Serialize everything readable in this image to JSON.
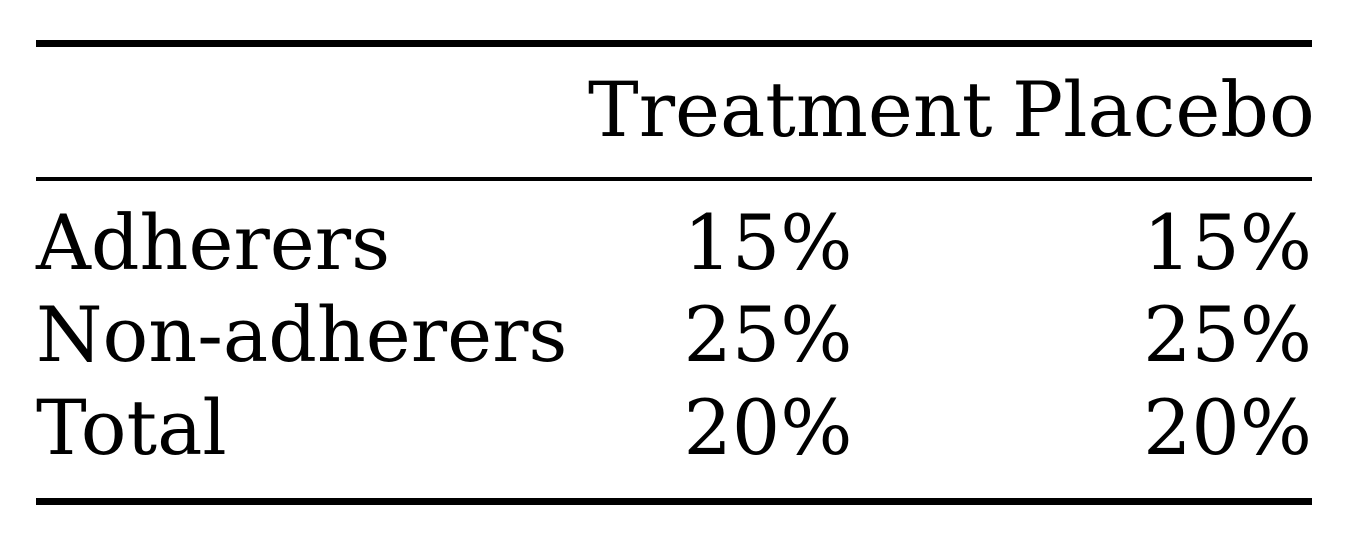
{
  "table": {
    "columns": [
      "",
      "Treatment",
      "Placebo"
    ],
    "rows": [
      {
        "label": "Adherers",
        "treatment": "15%",
        "placebo": "15%"
      },
      {
        "label": "Non-adherers",
        "treatment": "25%",
        "placebo": "25%"
      },
      {
        "label": "Total",
        "treatment": "20%",
        "placebo": "20%"
      }
    ]
  }
}
